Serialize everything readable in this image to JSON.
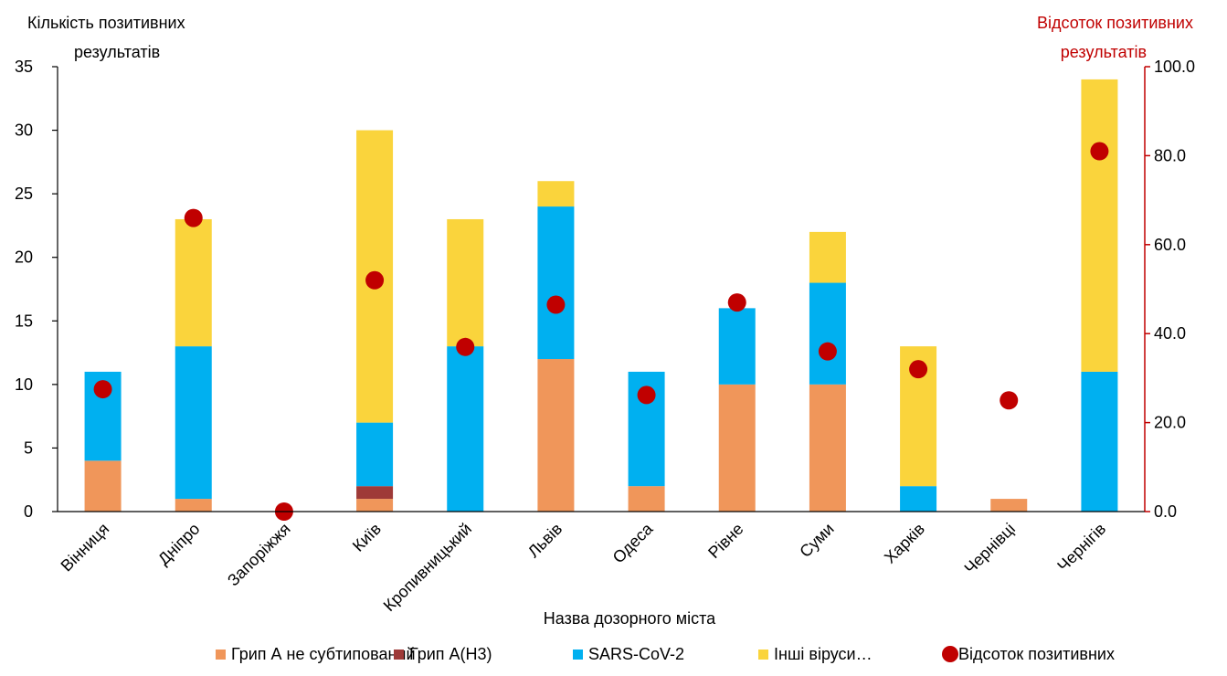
{
  "chart_data": {
    "type": "bar",
    "stacked": true,
    "xlabel": "Назва дозорного міста",
    "ylabel": "Кількість позитивних результатів",
    "y2label": "Відсоток позитивних результатів",
    "ylim": [
      0,
      35
    ],
    "y2lim": [
      0,
      100
    ],
    "yticks": [
      "0",
      "5",
      "10",
      "15",
      "20",
      "25",
      "30",
      "35"
    ],
    "y2ticks": [
      "0.0",
      "20.0",
      "40.0",
      "60.0",
      "80.0",
      "100.0"
    ],
    "categories": [
      "Вінниця",
      "Дніпро",
      "Запоріжжя",
      "Київ",
      "Кропивницький",
      "Львів",
      "Одеса",
      "Рівне",
      "Суми",
      "Харків",
      "Чернівці",
      "Чернігів"
    ],
    "series": [
      {
        "name": "Грип А не субтипований",
        "color": "#F0965A",
        "values": [
          4,
          1,
          0,
          1,
          0,
          12,
          2,
          10,
          10,
          0,
          1,
          0
        ]
      },
      {
        "name": "Грип А(Н3)",
        "color": "#9E3A38",
        "values": [
          0,
          0,
          0,
          1,
          0,
          0,
          0,
          0,
          0,
          0,
          0,
          0
        ]
      },
      {
        "name": "SARS-CoV-2",
        "color": "#00B0F0",
        "values": [
          7,
          12,
          0,
          5,
          13,
          12,
          9,
          6,
          8,
          2,
          0,
          11
        ]
      },
      {
        "name": "Інші віруси…",
        "color": "#FAD43C",
        "values": [
          0,
          10,
          0,
          23,
          10,
          2,
          0,
          0,
          4,
          11,
          0,
          23
        ]
      }
    ],
    "percent_series": {
      "name": "Відсоток позитивних",
      "color": "#C00000",
      "axis": "right",
      "values": [
        27.5,
        66,
        0,
        52,
        37,
        46.5,
        26.2,
        47,
        36,
        32,
        25,
        81
      ]
    },
    "legend_position": "bottom",
    "grid": false
  }
}
